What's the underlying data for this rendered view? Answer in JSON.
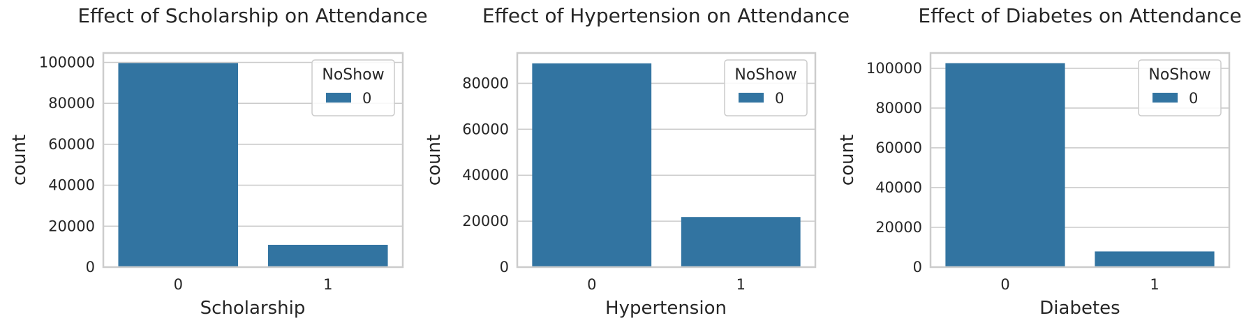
{
  "chart_data": [
    {
      "type": "bar",
      "title": "Effect of Scholarship on Attendance",
      "xlabel": "Scholarship",
      "ylabel": "count",
      "categories": [
        "0",
        "1"
      ],
      "series": [
        {
          "name": "0",
          "values": [
            99700,
            10900
          ]
        }
      ],
      "legend_title": "NoShow",
      "legend": "top-right",
      "ylim": [
        0,
        104600
      ],
      "yticks": [
        0,
        20000,
        40000,
        60000,
        80000,
        100000
      ],
      "grid": true,
      "color": "#3274a1"
    },
    {
      "type": "bar",
      "title": "Effect of Hypertension on Attendance",
      "xlabel": "Hypertension",
      "ylabel": "count",
      "categories": [
        "0",
        "1"
      ],
      "series": [
        {
          "name": "0",
          "values": [
            88700,
            21800
          ]
        }
      ],
      "legend_title": "NoShow",
      "legend": "top-right",
      "ylim": [
        0,
        93200
      ],
      "yticks": [
        0,
        20000,
        40000,
        60000,
        80000
      ],
      "grid": true,
      "color": "#3274a1"
    },
    {
      "type": "bar",
      "title": "Effect of Diabetes on Attendance",
      "xlabel": "Diabetes",
      "ylabel": "count",
      "categories": [
        "0",
        "1"
      ],
      "series": [
        {
          "name": "0",
          "values": [
            102600,
            7900
          ]
        }
      ],
      "legend_title": "NoShow",
      "legend": "top-right",
      "ylim": [
        0,
        107700
      ],
      "yticks": [
        0,
        20000,
        40000,
        60000,
        80000,
        100000
      ],
      "grid": true,
      "color": "#3274a1"
    }
  ]
}
